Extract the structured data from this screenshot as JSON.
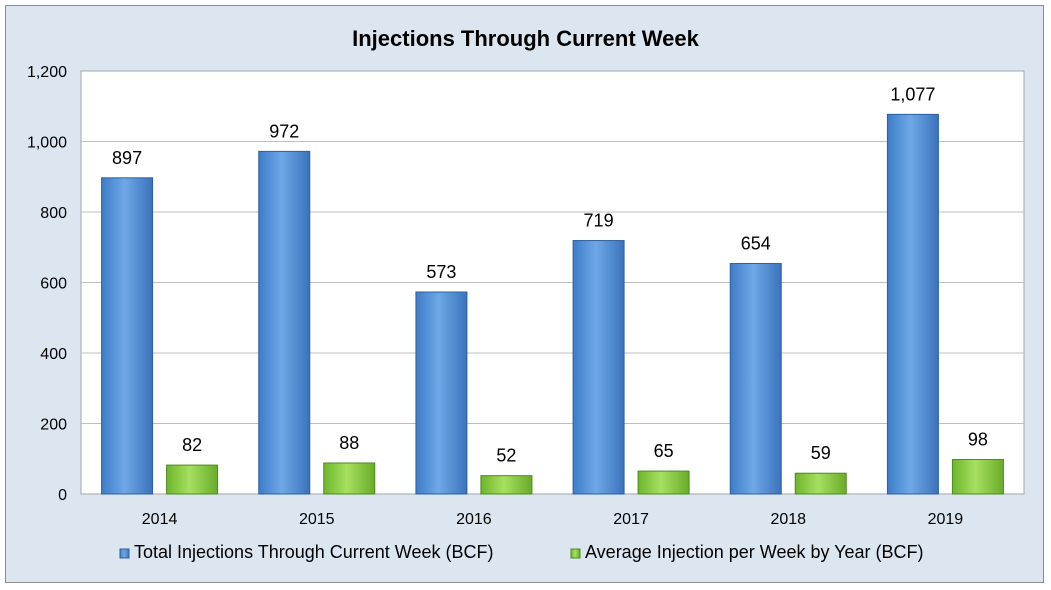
{
  "chart_data": {
    "type": "bar",
    "title": "Injections Through Current Week",
    "categories": [
      "2014",
      "2015",
      "2016",
      "2017",
      "2018",
      "2019"
    ],
    "series": [
      {
        "name": "Total Injections Through Current Week (BCF)",
        "values": [
          897,
          972,
          573,
          719,
          654,
          1077
        ],
        "labels": [
          "897",
          "972",
          "573",
          "719",
          "654",
          "1,077"
        ],
        "color": "#5b9bd5"
      },
      {
        "name": "Average Injection per Week by Year (BCF)",
        "values": [
          82,
          88,
          52,
          65,
          59,
          98
        ],
        "labels": [
          "82",
          "88",
          "52",
          "65",
          "59",
          "98"
        ],
        "color": "#8fd14f"
      }
    ],
    "ylim": [
      0,
      1200
    ],
    "yticks": [
      0,
      200,
      400,
      600,
      800,
      1000,
      1200
    ],
    "ytick_labels": [
      "0",
      "200",
      "400",
      "600",
      "800",
      "1,000",
      "1,200"
    ],
    "grid": true,
    "legend_position": "bottom",
    "xlabel": "",
    "ylabel": ""
  },
  "colors": {
    "background": "#dce6f1",
    "plot_area": "#ffffff",
    "gridline": "#bfbfbf"
  }
}
